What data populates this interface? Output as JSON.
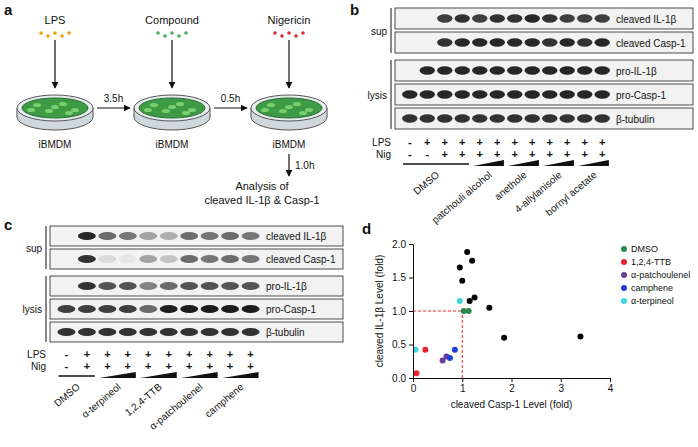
{
  "panels": {
    "a": {
      "label": "a",
      "steps": [
        {
          "reagent": "LPS",
          "cell": "iBMDM"
        },
        {
          "reagent": "Compound",
          "cell": "iBMDM"
        },
        {
          "reagent": "Nigericin",
          "cell": "iBMDM"
        }
      ],
      "intervals": [
        "3.5h",
        "0.5h",
        "1.0h"
      ],
      "readout": [
        "Analysis of",
        "cleaved IL-1β & Casp-1"
      ]
    },
    "b": {
      "label": "b",
      "groups": [
        {
          "name": "sup",
          "rows": [
            "cleaved IL-1β",
            "cleaved Casp-1"
          ]
        },
        {
          "name": "lysis",
          "rows": [
            "pro-IL-1β",
            "pro-Casp-1",
            "β-tubulin"
          ]
        }
      ],
      "treatments": [
        {
          "name": "LPS",
          "signs": [
            "-",
            "+",
            "+",
            "+",
            "+",
            "+",
            "+",
            "+",
            "+",
            "+",
            "+",
            "+"
          ]
        },
        {
          "name": "Nig",
          "signs": [
            "-",
            "-",
            "+",
            "+",
            "+",
            "+",
            "+",
            "+",
            "+",
            "+",
            "+",
            "+"
          ]
        }
      ],
      "compounds": [
        {
          "name": "DMSO",
          "lanes": 4,
          "gradient": false
        },
        {
          "name": "patchouli alcohol",
          "lanes": 2,
          "gradient": true
        },
        {
          "name": "anethole",
          "lanes": 2,
          "gradient": true
        },
        {
          "name": "4-allylanisole",
          "lanes": 2,
          "gradient": true
        },
        {
          "name": "bornyl acetate",
          "lanes": 2,
          "gradient": true
        }
      ],
      "bands": [
        [
          0,
          0,
          0.8,
          0.85,
          0.8,
          0.85,
          0.85,
          0.9,
          0.85,
          0.8,
          0.8,
          0.8
        ],
        [
          0,
          0,
          0.85,
          0.9,
          0.9,
          0.9,
          0.9,
          0.9,
          0.85,
          0.9,
          0.85,
          0.9
        ],
        [
          0,
          0.9,
          0.9,
          0.9,
          0.9,
          0.9,
          0.9,
          0.9,
          0.9,
          0.9,
          0.9,
          0.9
        ],
        [
          0.9,
          0.9,
          0.9,
          0.9,
          0.9,
          0.9,
          0.9,
          0.9,
          0.9,
          0.9,
          0.9,
          0.9
        ],
        [
          0.85,
          0.85,
          0.85,
          0.85,
          0.85,
          0.85,
          0.85,
          0.85,
          0.85,
          0.85,
          0.85,
          0.85
        ]
      ]
    },
    "c": {
      "label": "c",
      "groups": [
        {
          "name": "sup",
          "rows": [
            "cleaved IL-1β",
            "cleaved Casp-1"
          ]
        },
        {
          "name": "lysis",
          "rows": [
            "pro-IL-1β",
            "pro-Casp-1",
            "β-tubulin"
          ]
        }
      ],
      "treatments": [
        {
          "name": "LPS",
          "signs": [
            "-",
            "+",
            "+",
            "+",
            "+",
            "+",
            "+",
            "+",
            "+",
            "+"
          ]
        },
        {
          "name": "Nig",
          "signs": [
            "-",
            "+",
            "+",
            "+",
            "+",
            "+",
            "+",
            "+",
            "+",
            "+"
          ]
        }
      ],
      "compounds": [
        {
          "name": "DMSO",
          "lanes": 2,
          "gradient": false
        },
        {
          "name": "α-terpineol",
          "lanes": 2,
          "gradient": true
        },
        {
          "name": "1,2,4-TTB",
          "lanes": 2,
          "gradient": true
        },
        {
          "name": "α-patchoulenel",
          "lanes": 2,
          "gradient": true
        },
        {
          "name": "camphene",
          "lanes": 2,
          "gradient": true
        }
      ],
      "bands": [
        [
          0,
          0.9,
          0.6,
          0.55,
          0.35,
          0.3,
          0.6,
          0.55,
          0.6,
          0.55
        ],
        [
          0,
          0.85,
          0.1,
          0.05,
          0.35,
          0.2,
          0.6,
          0.55,
          0.6,
          0.55
        ],
        [
          0,
          0.85,
          0.7,
          0.7,
          0.5,
          0.6,
          0.7,
          0.7,
          0.7,
          0.7
        ],
        [
          0.8,
          0.8,
          0.8,
          0.8,
          0.6,
          0.95,
          0.95,
          0.95,
          0.95,
          0.95
        ],
        [
          0.85,
          0.85,
          0.85,
          0.85,
          0.85,
          0.85,
          0.85,
          0.85,
          0.85,
          0.85
        ]
      ]
    },
    "d": {
      "label": "d"
    }
  },
  "chart_data": {
    "type": "scatter",
    "x_label": "cleaved Casp-1 Level (fold)",
    "y_label": "cleaved IL-1β Level (fold)",
    "xlim": [
      0,
      4
    ],
    "xticks": [
      0,
      1,
      2,
      3,
      4
    ],
    "ylim": [
      0,
      2
    ],
    "yticks": [
      {
        "value": 0,
        "label": "0.0"
      },
      0.5,
      {
        "value": 1,
        "label": "1.0"
      },
      1.5,
      {
        "value": 2,
        "label": "2.0"
      }
    ],
    "reference_lines": {
      "x": 1,
      "y": 1
    },
    "legend": "top-right",
    "grid": false,
    "series": [
      {
        "name": "DMSO",
        "color": "#2a8a4a",
        "x": [
          1.03,
          1.13
        ],
        "values": [
          1.0,
          1.0
        ]
      },
      {
        "name": "1,2,4-TTB",
        "color": "#e8262b",
        "x": [
          0.07,
          0.25
        ],
        "values": [
          0.07,
          0.42
        ]
      },
      {
        "name": "α-patchoulenel",
        "color": "#6a3d9a",
        "x": [
          0.6,
          0.68
        ],
        "values": [
          0.26,
          0.32
        ]
      },
      {
        "name": "camphene",
        "color": "#1f3fd6",
        "x": [
          0.75,
          0.85
        ],
        "values": [
          0.3,
          0.42
        ]
      },
      {
        "name": "α-terpineol",
        "color": "#3fd6e0",
        "x": [
          0.05,
          0.95
        ],
        "values": [
          0.42,
          1.15
        ]
      },
      {
        "color": "#000000",
        "x": [
          1.1,
          1.2,
          0.95,
          1.0,
          1.15,
          1.25,
          1.55,
          1.85,
          3.4
        ],
        "values": [
          1.88,
          1.75,
          1.65,
          1.45,
          1.15,
          1.2,
          1.05,
          0.6,
          0.62
        ]
      }
    ]
  }
}
